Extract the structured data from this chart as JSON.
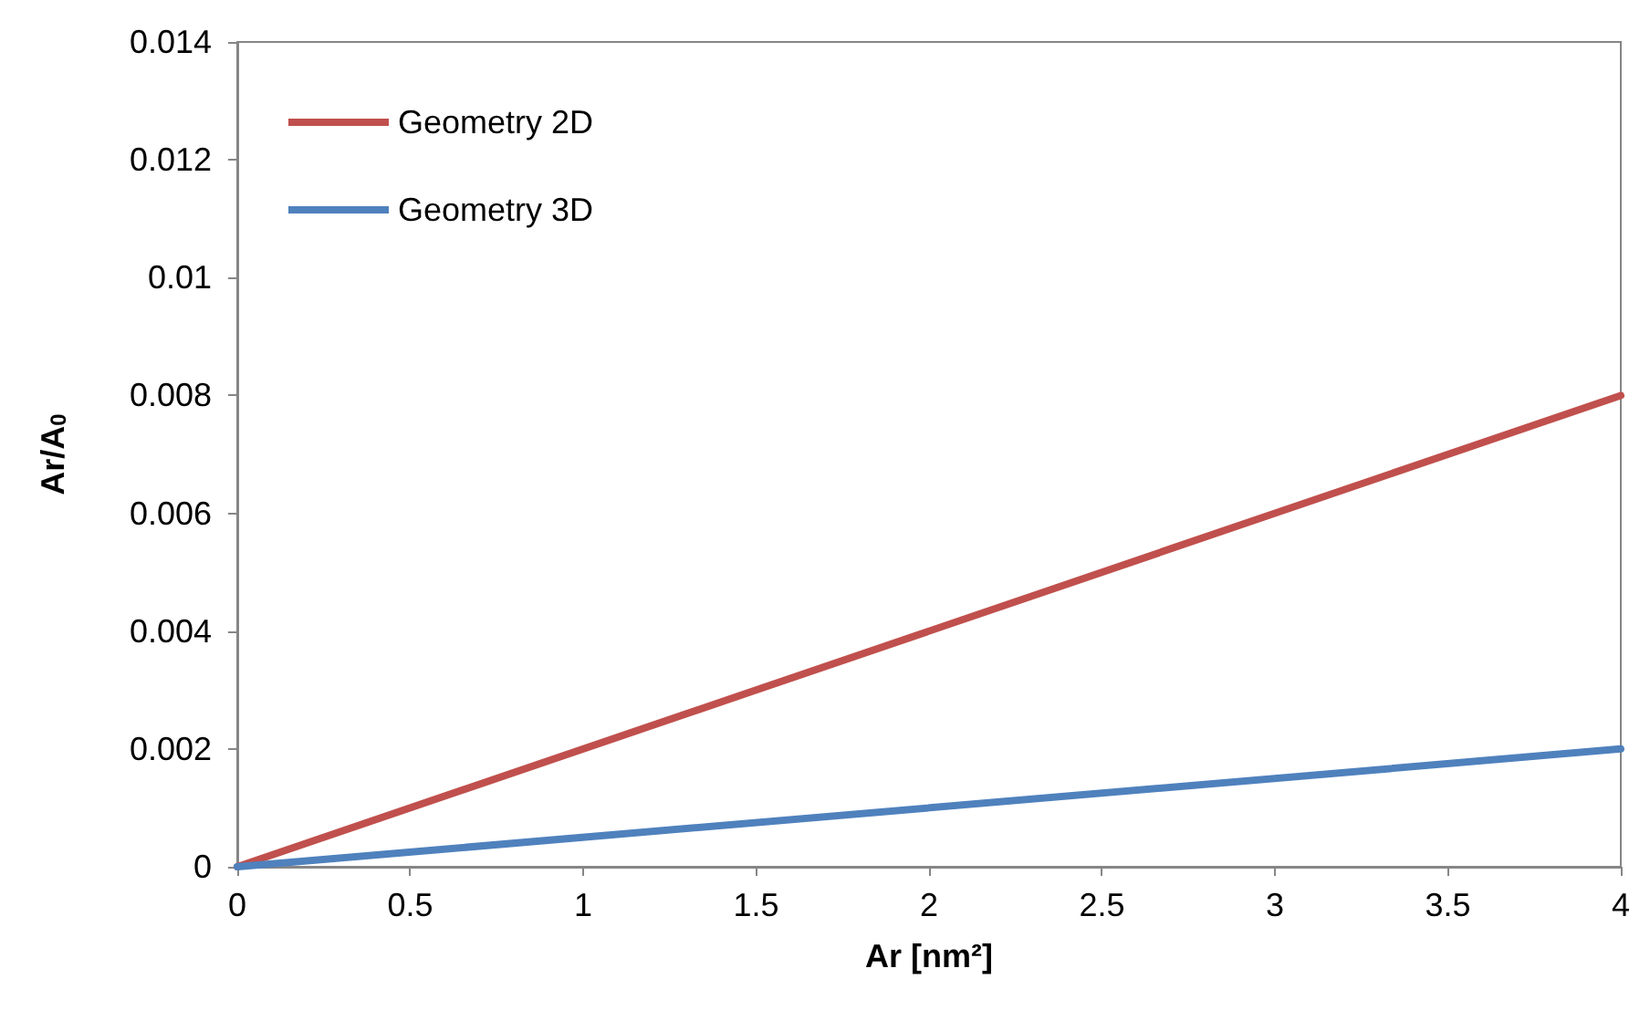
{
  "chart_data": {
    "type": "line",
    "xlabel": "Ar [nm²]",
    "ylabel": "Ar/A$_{0}$",
    "x": [
      0,
      4
    ],
    "series": [
      {
        "name": "Geometry 2D",
        "color": "#c0504d",
        "values": [
          0,
          0.008
        ]
      },
      {
        "name": "Geometry 3D",
        "color": "#4f81bd",
        "values": [
          0,
          0.002
        ]
      }
    ],
    "xlim": [
      0,
      4
    ],
    "xticks": [
      0,
      0.5,
      1,
      1.5,
      2,
      2.5,
      3,
      3.5,
      4
    ],
    "ylim": [
      0,
      0.014
    ],
    "yticks": [
      0,
      0.002,
      0.004,
      0.006,
      0.008,
      0.01,
      0.012,
      0.014
    ],
    "grid": false,
    "legend": "top left",
    "marker": "none",
    "line_style": "solid"
  }
}
